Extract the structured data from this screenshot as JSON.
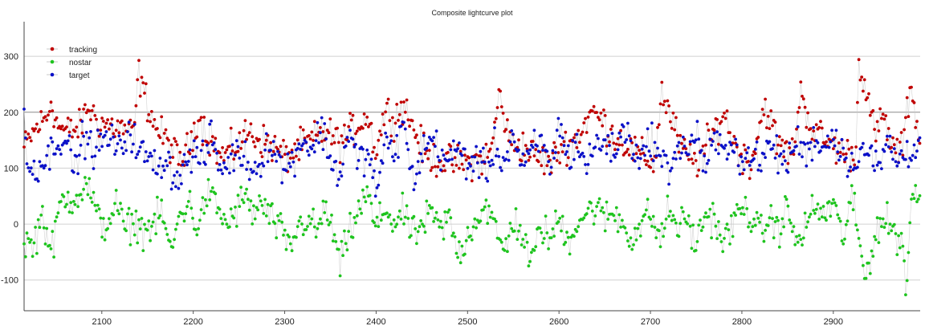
{
  "chart_data": {
    "type": "scatter",
    "title": "Composite lightcurve plot",
    "xlabel": "",
    "ylabel": "",
    "xlim": [
      2015,
      2995
    ],
    "ylim": [
      -155,
      362
    ],
    "x_ticks": [
      2100,
      2200,
      2300,
      2400,
      2500,
      2600,
      2700,
      2800,
      2900
    ],
    "y_ticks": [
      -100,
      0,
      100,
      200,
      300
    ],
    "grid": "horizontal",
    "legend_position": "top-left",
    "connect_points": true,
    "line_color": "#c8c8c8",
    "series": [
      {
        "name": "tracking",
        "color": "#c00000",
        "keypoints": [
          [
            2015,
            135
          ],
          [
            2020,
            150
          ],
          [
            2030,
            175
          ],
          [
            2040,
            190
          ],
          [
            2045,
            225
          ],
          [
            2050,
            180
          ],
          [
            2060,
            165
          ],
          [
            2075,
            170
          ],
          [
            2085,
            210
          ],
          [
            2095,
            185
          ],
          [
            2110,
            175
          ],
          [
            2125,
            170
          ],
          [
            2135,
            160
          ],
          [
            2140,
            270
          ],
          [
            2145,
            240
          ],
          [
            2150,
            215
          ],
          [
            2160,
            170
          ],
          [
            2175,
            140
          ],
          [
            2185,
            110
          ],
          [
            2195,
            135
          ],
          [
            2205,
            195
          ],
          [
            2215,
            160
          ],
          [
            2230,
            120
          ],
          [
            2245,
            135
          ],
          [
            2260,
            165
          ],
          [
            2275,
            150
          ],
          [
            2290,
            135
          ],
          [
            2300,
            120
          ],
          [
            2315,
            135
          ],
          [
            2330,
            150
          ],
          [
            2345,
            165
          ],
          [
            2360,
            145
          ],
          [
            2375,
            170
          ],
          [
            2390,
            195
          ],
          [
            2400,
            130
          ],
          [
            2410,
            205
          ],
          [
            2420,
            190
          ],
          [
            2430,
            215
          ],
          [
            2440,
            175
          ],
          [
            2455,
            120
          ],
          [
            2470,
            115
          ],
          [
            2485,
            110
          ],
          [
            2500,
            110
          ],
          [
            2515,
            115
          ],
          [
            2525,
            125
          ],
          [
            2535,
            235
          ],
          [
            2545,
            150
          ],
          [
            2560,
            140
          ],
          [
            2575,
            120
          ],
          [
            2590,
            110
          ],
          [
            2605,
            140
          ],
          [
            2620,
            155
          ],
          [
            2635,
            200
          ],
          [
            2645,
            190
          ],
          [
            2660,
            160
          ],
          [
            2675,
            140
          ],
          [
            2690,
            120
          ],
          [
            2705,
            110
          ],
          [
            2712,
            240
          ],
          [
            2720,
            200
          ],
          [
            2735,
            130
          ],
          [
            2750,
            110
          ],
          [
            2765,
            150
          ],
          [
            2780,
            200
          ],
          [
            2795,
            130
          ],
          [
            2810,
            110
          ],
          [
            2825,
            215
          ],
          [
            2840,
            140
          ],
          [
            2855,
            125
          ],
          [
            2865,
            240
          ],
          [
            2875,
            175
          ],
          [
            2890,
            150
          ],
          [
            2905,
            135
          ],
          [
            2915,
            125
          ],
          [
            2925,
            130
          ],
          [
            2928,
            295
          ],
          [
            2935,
            250
          ],
          [
            2945,
            160
          ],
          [
            2955,
            190
          ],
          [
            2965,
            135
          ],
          [
            2975,
            130
          ],
          [
            2985,
            255
          ],
          [
            2995,
            135
          ]
        ]
      },
      {
        "name": "nostar",
        "color": "#1ec41e",
        "keypoints": [
          [
            2015,
            -30
          ],
          [
            2025,
            -40
          ],
          [
            2035,
            20
          ],
          [
            2045,
            -55
          ],
          [
            2055,
            40
          ],
          [
            2065,
            45
          ],
          [
            2075,
            55
          ],
          [
            2085,
            70
          ],
          [
            2095,
            10
          ],
          [
            2105,
            -5
          ],
          [
            2115,
            40
          ],
          [
            2125,
            -10
          ],
          [
            2135,
            5
          ],
          [
            2145,
            -10
          ],
          [
            2155,
            -5
          ],
          [
            2165,
            20
          ],
          [
            2170,
            -5
          ],
          [
            2175,
            -55
          ],
          [
            2185,
            15
          ],
          [
            2195,
            40
          ],
          [
            2205,
            -10
          ],
          [
            2215,
            55
          ],
          [
            2225,
            35
          ],
          [
            2235,
            0
          ],
          [
            2245,
            15
          ],
          [
            2255,
            50
          ],
          [
            2265,
            20
          ],
          [
            2275,
            35
          ],
          [
            2285,
            10
          ],
          [
            2295,
            -10
          ],
          [
            2305,
            -45
          ],
          [
            2315,
            -5
          ],
          [
            2325,
            10
          ],
          [
            2335,
            -15
          ],
          [
            2345,
            30
          ],
          [
            2355,
            -30
          ],
          [
            2360,
            -75
          ],
          [
            2370,
            -20
          ],
          [
            2380,
            20
          ],
          [
            2390,
            55
          ],
          [
            2400,
            -10
          ],
          [
            2410,
            30
          ],
          [
            2420,
            0
          ],
          [
            2430,
            20
          ],
          [
            2440,
            -20
          ],
          [
            2450,
            -5
          ],
          [
            2460,
            20
          ],
          [
            2470,
            -10
          ],
          [
            2480,
            10
          ],
          [
            2490,
            -55
          ],
          [
            2500,
            -20
          ],
          [
            2510,
            10
          ],
          [
            2520,
            35
          ],
          [
            2530,
            -10
          ],
          [
            2540,
            -50
          ],
          [
            2550,
            10
          ],
          [
            2560,
            -20
          ],
          [
            2570,
            -75
          ],
          [
            2580,
            0
          ],
          [
            2590,
            -30
          ],
          [
            2600,
            10
          ],
          [
            2610,
            -30
          ],
          [
            2620,
            5
          ],
          [
            2630,
            20
          ],
          [
            2640,
            30
          ],
          [
            2650,
            10
          ],
          [
            2660,
            20
          ],
          [
            2670,
            0
          ],
          [
            2680,
            -25
          ],
          [
            2690,
            0
          ],
          [
            2700,
            20
          ],
          [
            2710,
            -30
          ],
          [
            2720,
            25
          ],
          [
            2730,
            -5
          ],
          [
            2740,
            10
          ],
          [
            2750,
            -40
          ],
          [
            2760,
            20
          ],
          [
            2770,
            10
          ],
          [
            2780,
            -35
          ],
          [
            2790,
            0
          ],
          [
            2800,
            30
          ],
          [
            2810,
            15
          ],
          [
            2820,
            -20
          ],
          [
            2830,
            10
          ],
          [
            2840,
            -10
          ],
          [
            2850,
            30
          ],
          [
            2860,
            -40
          ],
          [
            2870,
            0
          ],
          [
            2880,
            30
          ],
          [
            2890,
            15
          ],
          [
            2900,
            40
          ],
          [
            2910,
            -30
          ],
          [
            2920,
            50
          ],
          [
            2930,
            -50
          ],
          [
            2935,
            -100
          ],
          [
            2945,
            -20
          ],
          [
            2955,
            10
          ],
          [
            2965,
            -10
          ],
          [
            2975,
            -30
          ],
          [
            2980,
            -120
          ],
          [
            2985,
            50
          ],
          [
            2995,
            45
          ]
        ]
      },
      {
        "name": "target",
        "color": "#0a10c8",
        "keypoints": [
          [
            2015,
            195
          ],
          [
            2020,
            95
          ],
          [
            2030,
            105
          ],
          [
            2040,
            115
          ],
          [
            2050,
            150
          ],
          [
            2060,
            155
          ],
          [
            2070,
            95
          ],
          [
            2080,
            160
          ],
          [
            2090,
            130
          ],
          [
            2100,
            145
          ],
          [
            2110,
            155
          ],
          [
            2120,
            125
          ],
          [
            2130,
            175
          ],
          [
            2140,
            130
          ],
          [
            2150,
            120
          ],
          [
            2160,
            100
          ],
          [
            2170,
            120
          ],
          [
            2180,
            80
          ],
          [
            2190,
            100
          ],
          [
            2200,
            130
          ],
          [
            2210,
            110
          ],
          [
            2220,
            160
          ],
          [
            2230,
            95
          ],
          [
            2240,
            115
          ],
          [
            2250,
            130
          ],
          [
            2260,
            110
          ],
          [
            2270,
            95
          ],
          [
            2280,
            145
          ],
          [
            2290,
            125
          ],
          [
            2300,
            95
          ],
          [
            2310,
            120
          ],
          [
            2320,
            155
          ],
          [
            2330,
            130
          ],
          [
            2340,
            175
          ],
          [
            2350,
            115
          ],
          [
            2360,
            85
          ],
          [
            2370,
            165
          ],
          [
            2380,
            110
          ],
          [
            2390,
            130
          ],
          [
            2400,
            60
          ],
          [
            2410,
            140
          ],
          [
            2420,
            130
          ],
          [
            2430,
            180
          ],
          [
            2440,
            75
          ],
          [
            2450,
            125
          ],
          [
            2460,
            155
          ],
          [
            2470,
            130
          ],
          [
            2480,
            110
          ],
          [
            2490,
            140
          ],
          [
            2500,
            105
          ],
          [
            2510,
            120
          ],
          [
            2520,
            90
          ],
          [
            2530,
            140
          ],
          [
            2540,
            110
          ],
          [
            2550,
            160
          ],
          [
            2560,
            95
          ],
          [
            2570,
            130
          ],
          [
            2580,
            150
          ],
          [
            2590,
            100
          ],
          [
            2600,
            175
          ],
          [
            2610,
            120
          ],
          [
            2620,
            145
          ],
          [
            2630,
            105
          ],
          [
            2640,
            140
          ],
          [
            2650,
            150
          ],
          [
            2660,
            125
          ],
          [
            2670,
            170
          ],
          [
            2680,
            145
          ],
          [
            2690,
            110
          ],
          [
            2700,
            160
          ],
          [
            2710,
            115
          ],
          [
            2720,
            100
          ],
          [
            2730,
            140
          ],
          [
            2740,
            125
          ],
          [
            2750,
            170
          ],
          [
            2760,
            95
          ],
          [
            2770,
            150
          ],
          [
            2780,
            125
          ],
          [
            2790,
            160
          ],
          [
            2800,
            100
          ],
          [
            2810,
            135
          ],
          [
            2820,
            100
          ],
          [
            2830,
            145
          ],
          [
            2840,
            120
          ],
          [
            2850,
            110
          ],
          [
            2860,
            150
          ],
          [
            2870,
            125
          ],
          [
            2880,
            155
          ],
          [
            2890,
            135
          ],
          [
            2900,
            165
          ],
          [
            2910,
            130
          ],
          [
            2920,
            100
          ],
          [
            2930,
            140
          ],
          [
            2940,
            120
          ],
          [
            2950,
            100
          ],
          [
            2960,
            150
          ],
          [
            2970,
            110
          ],
          [
            2980,
            130
          ],
          [
            2990,
            140
          ],
          [
            2995,
            145
          ]
        ]
      }
    ]
  }
}
